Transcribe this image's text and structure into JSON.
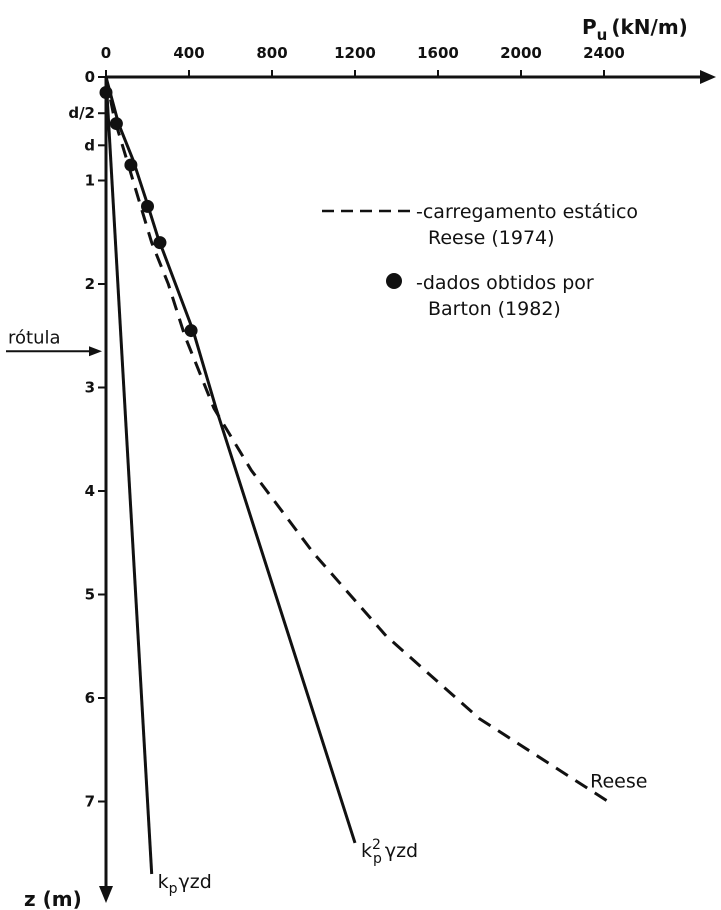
{
  "chart_data": {
    "type": "line",
    "x_axis": {
      "label": "P",
      "label_subscript": "u",
      "label_units": "(kN/m)",
      "ticks": [
        0,
        400,
        800,
        1200,
        1600,
        2000,
        2400
      ],
      "range": [
        0,
        2400
      ]
    },
    "y_axis": {
      "label": "z (m)",
      "ticks": [
        {
          "value": 0,
          "label": "0"
        },
        {
          "value": 1,
          "label": "1"
        },
        {
          "value": 2,
          "label": "2"
        },
        {
          "value": 3,
          "label": "3"
        },
        {
          "value": 4,
          "label": "4"
        },
        {
          "value": 5,
          "label": "5"
        },
        {
          "value": 6,
          "label": "6"
        },
        {
          "value": 7,
          "label": "7"
        }
      ],
      "extra_ticks": [
        {
          "value": 0.35,
          "label": "d/2"
        },
        {
          "value": 0.66,
          "label": "d"
        }
      ],
      "inverted": true
    },
    "series": [
      {
        "name": "kpγzd",
        "label_main": "k",
        "label_sub": "p",
        "label_rest": "γzd",
        "style": "solid",
        "points": [
          [
            0,
            0
          ],
          [
            220,
            7.7
          ]
        ]
      },
      {
        "name": "kp²γzd",
        "label_main": "k",
        "label_sub": "p",
        "label_sup": "2",
        "label_rest": "γzd",
        "style": "solid",
        "points": [
          [
            0,
            0
          ],
          [
            60,
            0.45
          ],
          [
            130,
            0.8
          ],
          [
            195,
            1.2
          ],
          [
            250,
            1.55
          ],
          [
            420,
            2.45
          ],
          [
            530,
            3.2
          ],
          [
            1200,
            7.4
          ]
        ]
      },
      {
        "name": "Reese",
        "label_main": "Reese",
        "style": "dashed",
        "points": [
          [
            0,
            0
          ],
          [
            40,
            0.4
          ],
          [
            100,
            0.8
          ],
          [
            160,
            1.2
          ],
          [
            220,
            1.6
          ],
          [
            300,
            2.0
          ],
          [
            380,
            2.5
          ],
          [
            520,
            3.2
          ],
          [
            700,
            3.8
          ],
          [
            1000,
            4.6
          ],
          [
            1350,
            5.4
          ],
          [
            1800,
            6.2
          ],
          [
            2420,
            7.0
          ]
        ]
      },
      {
        "name": "dados obtidos por Barton (1982)",
        "style": "markers",
        "points": [
          [
            0,
            0.15
          ],
          [
            50,
            0.45
          ],
          [
            120,
            0.85
          ],
          [
            200,
            1.25
          ],
          [
            260,
            1.6
          ],
          [
            410,
            2.45
          ]
        ]
      }
    ],
    "legend": {
      "placement": "top-right",
      "entries": [
        {
          "marker": "dashed",
          "line1": "-carregamento estático",
          "line2": "Reese (1974)"
        },
        {
          "marker": "dot",
          "line1": "-dados obtidos por",
          "line2": "Barton (1982)"
        }
      ]
    },
    "annotation": {
      "text": "rótula",
      "z": 2.65
    }
  }
}
